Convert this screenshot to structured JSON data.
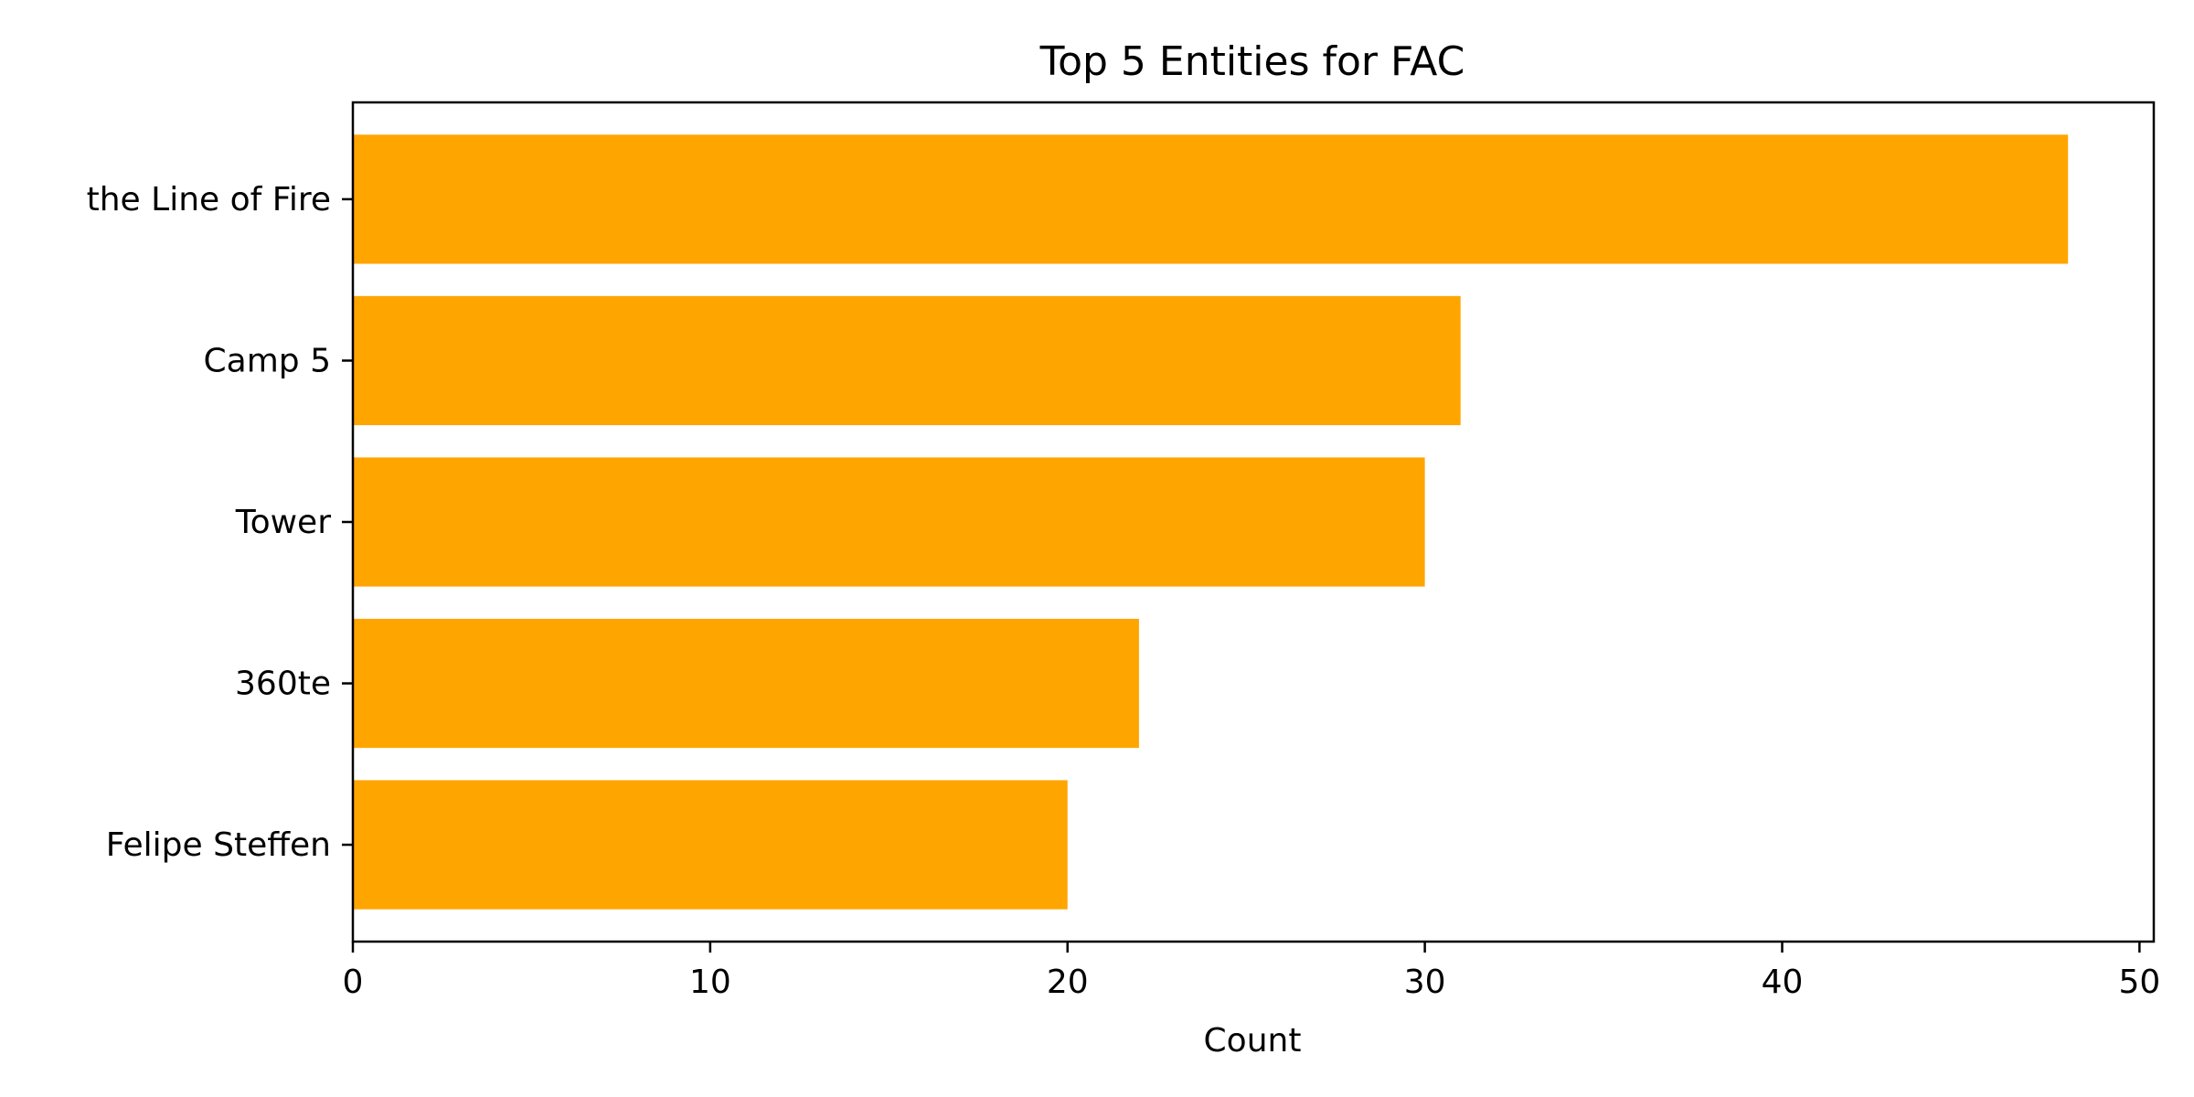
{
  "chart_data": {
    "type": "bar",
    "orientation": "horizontal",
    "title": "Top 5 Entities for FAC",
    "xlabel": "Count",
    "ylabel": "",
    "categories": [
      "the Line of Fire",
      "Camp 5",
      "Tower",
      "360te",
      "Felipe Steffen"
    ],
    "values": [
      48,
      31,
      30,
      22,
      20
    ],
    "xlim": [
      0,
      50.4
    ],
    "xticks": [
      0,
      10,
      20,
      30,
      40,
      50
    ],
    "bar_color": "#FFA500",
    "grid": false,
    "legend": false
  }
}
